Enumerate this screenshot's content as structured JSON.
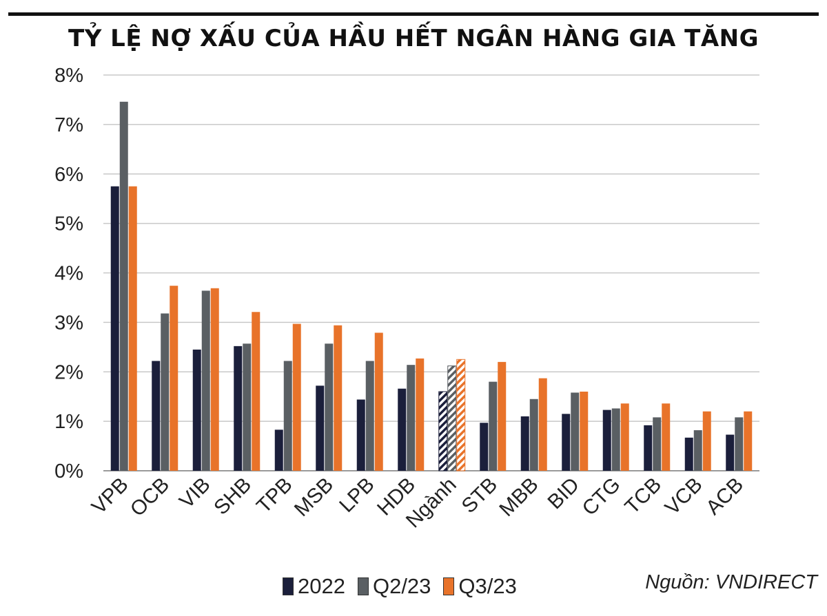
{
  "header": {
    "title": "TỶ LỆ NỢ XẤU CỦA HẦU HẾT NGÂN HÀNG GIA TĂNG"
  },
  "source": "Nguồn: VNDIRECT",
  "chart_data": {
    "type": "bar",
    "title": "TỶ LỆ NỢ XẤU CỦA HẦU HẾT NGÂN HÀNG GIA TĂNG",
    "xlabel": "",
    "ylabel": "",
    "ylim": [
      0,
      8
    ],
    "yticks": [
      "0%",
      "1%",
      "2%",
      "3%",
      "4%",
      "5%",
      "6%",
      "7%",
      "8%"
    ],
    "grid": true,
    "legend_position": "bottom",
    "highlighted_category": "Ngành",
    "categories": [
      "VPB",
      "OCB",
      "VIB",
      "SHB",
      "TPB",
      "MSB",
      "LPB",
      "HDB",
      "Ngành",
      "STB",
      "MBB",
      "BID",
      "CTG",
      "TCB",
      "VCB",
      "ACB"
    ],
    "series": [
      {
        "name": "2022",
        "color": "#1b1f3b",
        "values": [
          5.75,
          2.22,
          2.45,
          2.52,
          0.83,
          1.72,
          1.44,
          1.66,
          1.6,
          0.97,
          1.1,
          1.15,
          1.23,
          0.92,
          0.67,
          0.73
        ]
      },
      {
        "name": "Q2/23",
        "color": "#5a5f63",
        "values": [
          7.46,
          3.18,
          3.64,
          2.57,
          2.22,
          2.57,
          2.22,
          2.14,
          2.12,
          1.8,
          1.45,
          1.58,
          1.26,
          1.08,
          0.82,
          1.08
        ]
      },
      {
        "name": "Q3/23",
        "color": "#e8732a",
        "values": [
          5.75,
          3.74,
          3.69,
          3.21,
          2.97,
          2.94,
          2.79,
          2.27,
          2.25,
          2.2,
          1.87,
          1.6,
          1.36,
          1.36,
          1.2,
          1.2
        ]
      }
    ]
  }
}
